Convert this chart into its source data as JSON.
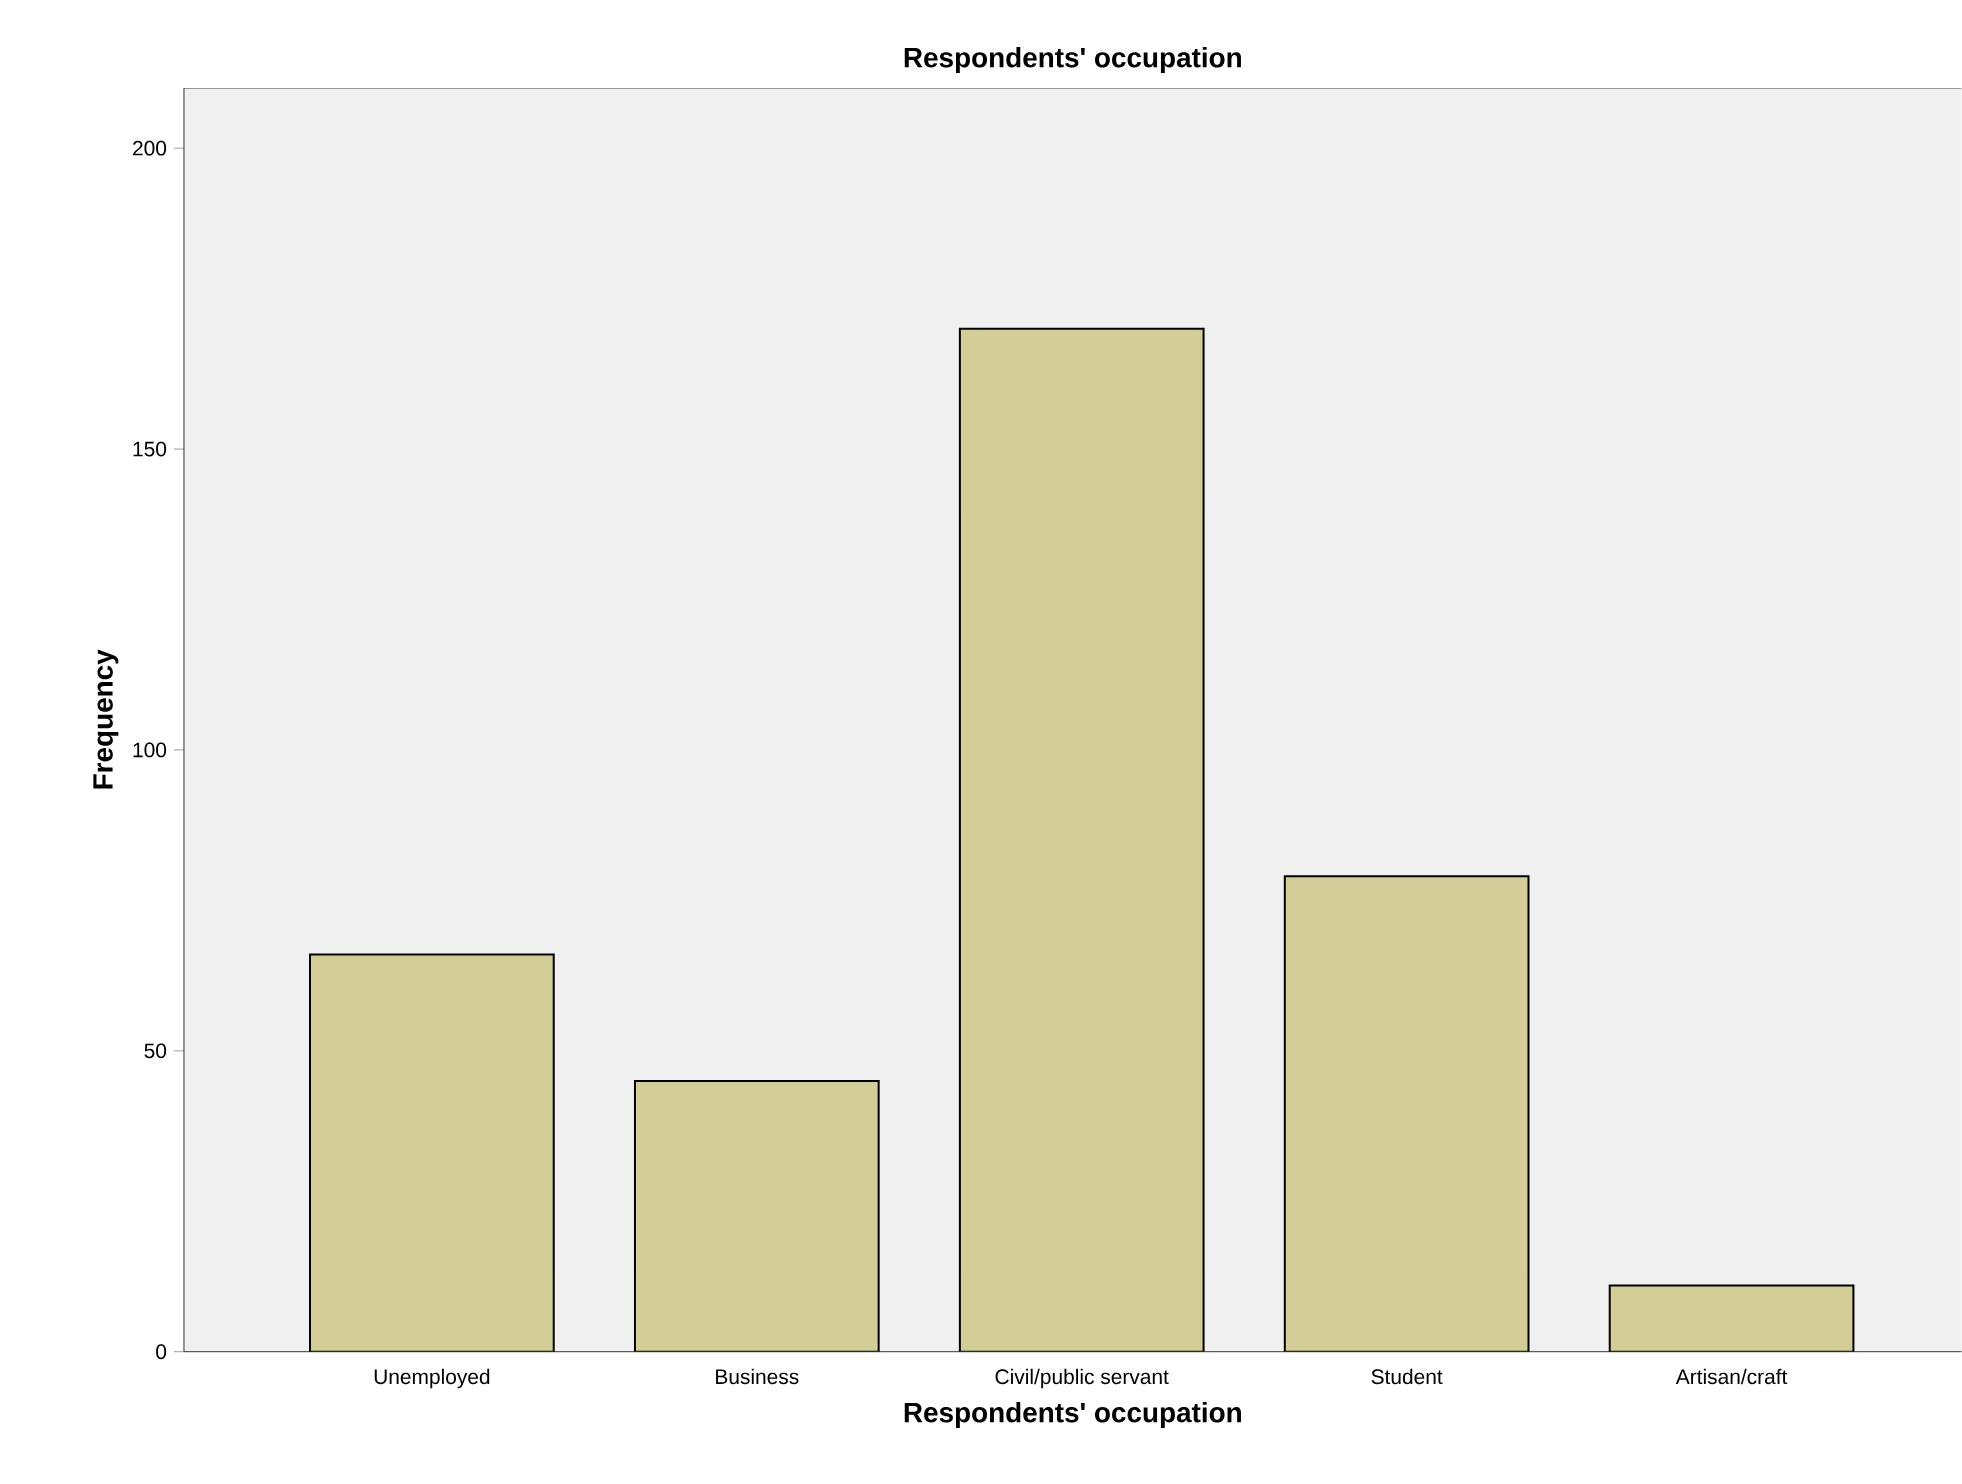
{
  "chart_data": {
    "type": "bar",
    "title": "Respondents' occupation",
    "xlabel": "Respondents' occupation",
    "ylabel": "Frequency",
    "categories": [
      "Unemployed",
      "Business",
      "Civil/public servant",
      "Student",
      "Artisan/craft"
    ],
    "values": [
      66,
      45,
      170,
      79,
      11
    ],
    "color": "#d3ce97",
    "ylim": [
      0,
      210
    ],
    "yticks": [
      0,
      50,
      100,
      150,
      200
    ]
  }
}
